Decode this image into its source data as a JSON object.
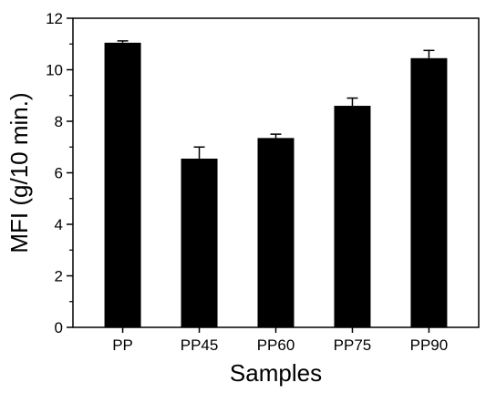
{
  "chart_data": {
    "type": "bar",
    "categories": [
      "PP",
      "PP45",
      "PP60",
      "PP75",
      "PP90"
    ],
    "values": [
      11.05,
      6.55,
      7.35,
      8.6,
      10.45
    ],
    "errors": [
      0.07,
      0.45,
      0.15,
      0.3,
      0.3
    ],
    "xlabel": "Samples",
    "ylabel": "MFI (g/10 min.)",
    "ylim": [
      0,
      12
    ],
    "yticks": [
      "0",
      "2",
      "4",
      "6",
      "8",
      "10",
      "12"
    ],
    "yticks_values": [
      0,
      2,
      4,
      6,
      8,
      10,
      12
    ],
    "grid": false,
    "legend": "none",
    "bar_color": "#000000"
  }
}
